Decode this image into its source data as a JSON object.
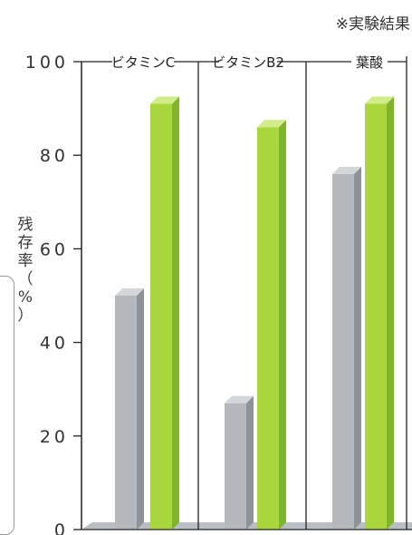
{
  "note": "※実験結果",
  "chart_data": {
    "type": "bar",
    "categories": [
      "ビタミンC",
      "ビタミンB2",
      "葉酸"
    ],
    "series": [
      {
        "values": [
          50,
          27,
          76
        ]
      },
      {
        "values": [
          91,
          86,
          91
        ]
      }
    ],
    "ylabel": "残存率（%）",
    "yticks": [
      "0",
      "20",
      "40",
      "60",
      "80",
      "100"
    ],
    "ylim": [
      0,
      100
    ],
    "colors": {
      "gray_front": "#b4b8bd",
      "gray_side": "#8e9399",
      "gray_top": "#d4d7da",
      "green_front": "#a8d63c",
      "green_side": "#7fb52a",
      "green_top": "#d2ec8a",
      "axis": "#222222",
      "floor": "#b9bec5"
    }
  }
}
